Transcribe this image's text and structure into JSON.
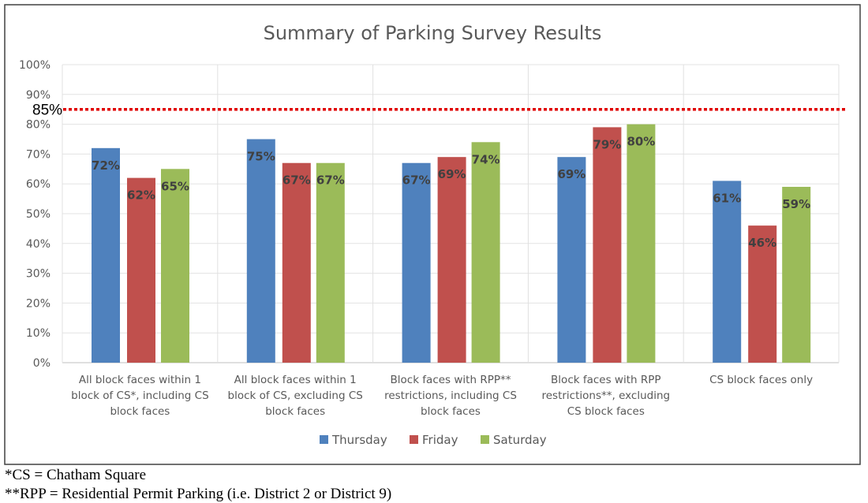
{
  "chart_data": {
    "type": "bar",
    "title": "Summary of Parking Survey Results",
    "categories": [
      [
        "All block faces within 1",
        "block of CS*, including CS",
        "block faces"
      ],
      [
        "All block faces within 1",
        "block of CS, excluding CS",
        "block faces"
      ],
      [
        "Block faces with RPP**",
        "restrictions, including CS",
        "block faces"
      ],
      [
        "Block faces with RPP",
        "restrictions**, excluding",
        "CS block faces"
      ],
      [
        "CS block faces only"
      ]
    ],
    "series": [
      {
        "name": "Thursday",
        "color": "#4F81BD",
        "values": [
          72,
          75,
          67,
          69,
          61
        ]
      },
      {
        "name": "Friday",
        "color": "#C0504D",
        "values": [
          62,
          67,
          69,
          79,
          46
        ]
      },
      {
        "name": "Saturday",
        "color": "#9BBB59",
        "values": [
          65,
          67,
          74,
          80,
          59
        ]
      }
    ],
    "data_label_suffix": "%",
    "ylim": [
      0,
      100
    ],
    "yticks": [
      "0%",
      "10%",
      "20%",
      "30%",
      "40%",
      "50%",
      "60%",
      "70%",
      "80%",
      "90%",
      "100%"
    ],
    "grid": true,
    "legend": "bottom",
    "reference_line": {
      "value": 85,
      "label": "85%",
      "color": "#E00000",
      "style": "dotted"
    }
  },
  "footnotes": [
    "*CS = Chatham Square",
    "**RPP = Residential Permit Parking (i.e. District 2 or District 9)"
  ]
}
